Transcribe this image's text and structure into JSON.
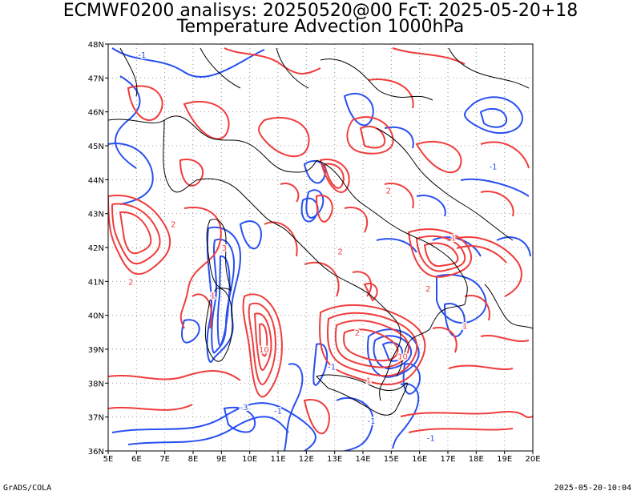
{
  "title": {
    "line1": "ECMWF0200 analisys: 20250520@00 FcT: 2025-05-20+18",
    "line2": "Temperature Advection 1000hPa"
  },
  "map": {
    "lon_labels": [
      "5E",
      "6E",
      "7E",
      "8E",
      "9E",
      "10E",
      "11E",
      "12E",
      "13E",
      "14E",
      "15E",
      "16E",
      "17E",
      "18E",
      "19E",
      "20E"
    ],
    "lat_labels": [
      "36N",
      "37N",
      "38N",
      "39N",
      "40N",
      "41N",
      "42N",
      "43N",
      "44N",
      "45N",
      "46N",
      "47N",
      "48N"
    ],
    "lon_range": [
      5,
      20
    ],
    "lat_range": [
      36,
      48
    ],
    "grid": "dotted",
    "colors": {
      "positive": "#f03c3c",
      "negative": "#2850f0",
      "coast": "#000000",
      "grid": "#999999"
    },
    "contour_labels": [
      {
        "text": "-1",
        "lon": 6.2,
        "lat": 47.6
      },
      {
        "text": "2",
        "lon": 7.3,
        "lat": 42.6
      },
      {
        "text": "2",
        "lon": 5.8,
        "lat": 40.9
      },
      {
        "text": "3",
        "lon": 9.1,
        "lat": 41.9
      },
      {
        "text": "1",
        "lon": 8.7,
        "lat": 40.5
      },
      {
        "text": "10",
        "lon": 10.5,
        "lat": 38.9
      },
      {
        "text": "-1",
        "lon": 11.0,
        "lat": 37.1
      },
      {
        "text": "-3",
        "lon": 9.8,
        "lat": 37.2
      },
      {
        "text": "2",
        "lon": 14.9,
        "lat": 43.6
      },
      {
        "text": "2",
        "lon": 13.2,
        "lat": 41.8
      },
      {
        "text": "1",
        "lon": 17.2,
        "lat": 42.2
      },
      {
        "text": "-1",
        "lon": 18.6,
        "lat": 44.3
      },
      {
        "text": "2",
        "lon": 16.3,
        "lat": 40.7
      },
      {
        "text": "1",
        "lon": 17.6,
        "lat": 39.6
      },
      {
        "text": "-1",
        "lon": 12.9,
        "lat": 38.4
      },
      {
        "text": "1",
        "lon": 14.2,
        "lat": 38.0
      },
      {
        "text": "10",
        "lon": 15.4,
        "lat": 38.7
      },
      {
        "text": "-1",
        "lon": 14.3,
        "lat": 36.8
      },
      {
        "text": "-1",
        "lon": 16.4,
        "lat": 36.3
      },
      {
        "text": "2",
        "lon": 13.8,
        "lat": 39.4
      }
    ]
  },
  "footer": {
    "left": "GrADS/COLA",
    "right": "2025-05-20-10:04"
  }
}
